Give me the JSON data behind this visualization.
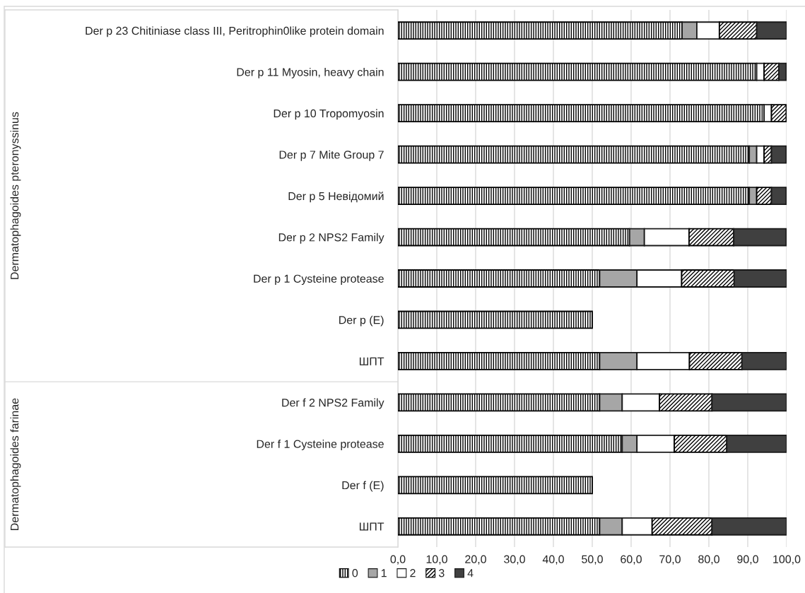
{
  "chart_data": {
    "type": "bar",
    "orientation": "horizontal",
    "stacked": true,
    "categories": [
      "Der p 23 Chitiniase class III, Peritrophin0like protein domain",
      "Der p 11 Myosin, heavy chain",
      "Der p 10 Tropomyosin",
      "Der p 7 Mite Group 7",
      "Der p 5 Невідомий",
      "Der p 2 NPS2 Family",
      "Der p 1 Cysteine protease",
      "Der p (E)",
      "ШПТ",
      "Der f 2 NPS2 Family",
      "Der f 1 Cysteine protease",
      "Der f (E)",
      "ШПТ"
    ],
    "series": [
      {
        "name": "0",
        "color": "#000000",
        "values": [
          73.1,
          92.3,
          94.2,
          90.4,
          90.4,
          59.6,
          51.9,
          50,
          51.9,
          51.9,
          57.7,
          50,
          51.9
        ]
      },
      {
        "name": "1",
        "color": "#a6a6a6",
        "values": [
          3.8,
          0,
          0,
          1.9,
          1.9,
          3.8,
          9.6,
          0,
          9.6,
          5.8,
          3.8,
          0,
          5.8
        ]
      },
      {
        "name": "2",
        "color": "#ffffff",
        "values": [
          5.8,
          1.9,
          1.9,
          1.9,
          0,
          11.5,
          11.5,
          0,
          13.5,
          9.6,
          9.6,
          0,
          7.7
        ]
      },
      {
        "name": "3",
        "color": "#000000",
        "values": [
          9.6,
          3.8,
          3.8,
          1.9,
          3.8,
          11.5,
          13.5,
          0,
          13.5,
          13.5,
          13.5,
          0,
          15.4
        ]
      },
      {
        "name": "4",
        "color": "#404040",
        "values": [
          7.7,
          1.9,
          0,
          3.8,
          3.8,
          13.5,
          13.5,
          0,
          11.5,
          19.2,
          15.4,
          0,
          19.2
        ]
      }
    ],
    "xlim": [
      0,
      100
    ],
    "xticks": [
      {
        "value": 0,
        "label": "0,0"
      },
      {
        "value": 10,
        "label": "10,0"
      },
      {
        "value": 20,
        "label": "20,0"
      },
      {
        "value": 30,
        "label": "30,0"
      },
      {
        "value": 40,
        "label": "40,0"
      },
      {
        "value": 50,
        "label": "50,0"
      },
      {
        "value": 60,
        "label": "60,0"
      },
      {
        "value": 70,
        "label": "70,0"
      },
      {
        "value": 80,
        "label": "80,0"
      },
      {
        "value": 90,
        "label": "90,0"
      },
      {
        "value": 100,
        "label": "100,0"
      }
    ],
    "grid": "x",
    "legend": "bottom",
    "annotations": [
      "Dermatophagoides pteronyssinus",
      "Dermatophagoides farinae"
    ]
  }
}
